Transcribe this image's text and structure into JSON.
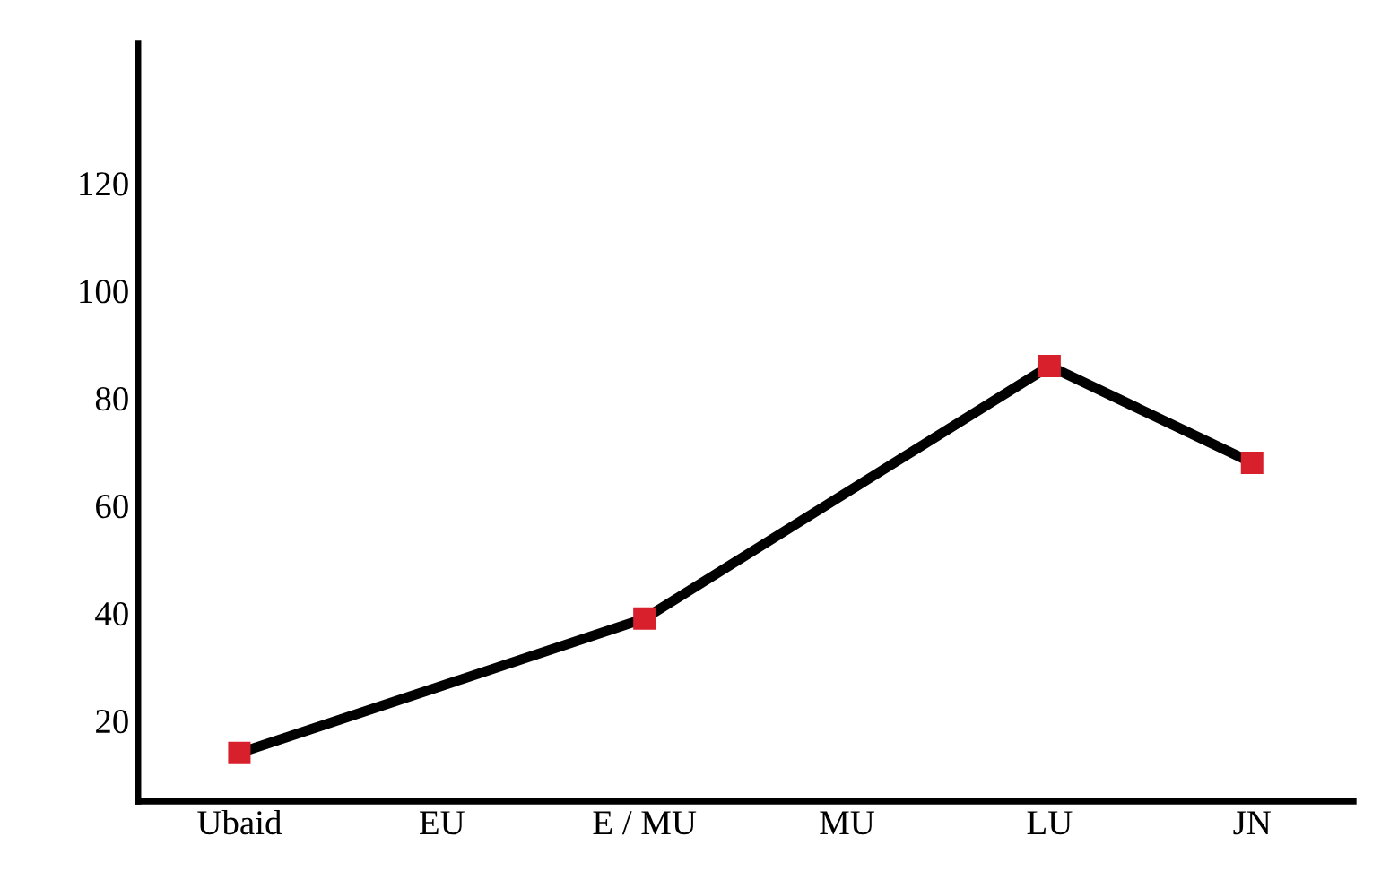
{
  "chart_data": {
    "type": "line",
    "categories": [
      "Ubaid",
      "EU",
      "E / MU",
      "MU",
      "LU",
      "JN"
    ],
    "series": [
      {
        "color": "#000000",
        "colors": [
          "#d8202c",
          null,
          "#d8202c",
          null,
          "#d8202c",
          "#d8202c"
        ],
        "values": [
          14,
          null,
          39,
          null,
          86,
          68
        ]
      }
    ],
    "ylim": [
      5,
      146
    ],
    "yticks": [
      20,
      40,
      60,
      80,
      100,
      120
    ],
    "marker": "square",
    "line_style": "solid",
    "grid": false,
    "legend": false
  }
}
